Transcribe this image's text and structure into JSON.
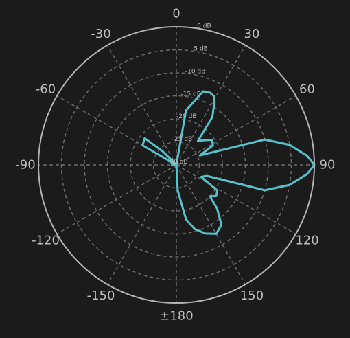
{
  "chart_data": {
    "type": "polar-line",
    "angle_unit": "degrees",
    "zero_direction": "top",
    "direction": "clockwise",
    "angle_ticks": [
      {
        "angle": 0,
        "label": "0"
      },
      {
        "angle": 30,
        "label": "30"
      },
      {
        "angle": 60,
        "label": "60"
      },
      {
        "angle": 90,
        "label": "90"
      },
      {
        "angle": 120,
        "label": "120"
      },
      {
        "angle": 150,
        "label": "150"
      },
      {
        "angle": 180,
        "label": "±180"
      },
      {
        "angle": -150,
        "label": "-150"
      },
      {
        "angle": -120,
        "label": "-120"
      },
      {
        "angle": -90,
        "label": "-90"
      },
      {
        "angle": -60,
        "label": "-60"
      },
      {
        "angle": -30,
        "label": "-30"
      }
    ],
    "radial_ticks": [
      {
        "value": 0,
        "label": "0 dB"
      },
      {
        "value": -5,
        "label": "-5 dB"
      },
      {
        "value": -10,
        "label": "-10 dB"
      },
      {
        "value": -15,
        "label": "-15 dB"
      },
      {
        "value": -20,
        "label": "-20 dB"
      },
      {
        "value": -25,
        "label": "-25 dB"
      },
      {
        "value": -30,
        "label": "-30 dB"
      }
    ],
    "radial_range": [
      -30,
      0
    ],
    "grid": true,
    "series": [
      {
        "color": "#56c3cc",
        "points": [
          {
            "angle": 0,
            "value": -30
          },
          {
            "angle": 10,
            "value": -18
          },
          {
            "angle": 20,
            "value": -13
          },
          {
            "angle": 25,
            "value": -12.7
          },
          {
            "angle": 29,
            "value": -13
          },
          {
            "angle": 32,
            "value": -14.5
          },
          {
            "angle": 37,
            "value": -17
          },
          {
            "angle": 42,
            "value": -23
          },
          {
            "angle": 48,
            "value": -22
          },
          {
            "angle": 55,
            "value": -20.5
          },
          {
            "angle": 62,
            "value": -21
          },
          {
            "angle": 68,
            "value": -24.5
          },
          {
            "angle": 74,
            "value": -10
          },
          {
            "angle": 80,
            "value": -5
          },
          {
            "angle": 86,
            "value": -1.5
          },
          {
            "angle": 90,
            "value": 0
          },
          {
            "angle": 94,
            "value": -1.5
          },
          {
            "angle": 100,
            "value": -5
          },
          {
            "angle": 106,
            "value": -10
          },
          {
            "angle": 110,
            "value": -23
          },
          {
            "angle": 116,
            "value": -24
          },
          {
            "angle": 122,
            "value": -19.5
          },
          {
            "angle": 128,
            "value": -19
          },
          {
            "angle": 133,
            "value": -20
          },
          {
            "angle": 137,
            "value": -17
          },
          {
            "angle": 143,
            "value": -13.7
          },
          {
            "angle": 150,
            "value": -12.7
          },
          {
            "angle": 157,
            "value": -13.8
          },
          {
            "angle": 164,
            "value": -15.5
          },
          {
            "angle": 170,
            "value": -18
          },
          {
            "angle": 177,
            "value": -24.5
          },
          {
            "angle": -177,
            "value": -30
          },
          {
            "angle": -100,
            "value": -30
          },
          {
            "angle": -95,
            "value": -29
          },
          {
            "angle": -90,
            "value": -30
          },
          {
            "angle": -80,
            "value": -30
          },
          {
            "angle": -60,
            "value": -21.5
          },
          {
            "angle": -50,
            "value": -21
          },
          {
            "angle": -45,
            "value": -26
          },
          {
            "angle": -30,
            "value": -30
          },
          {
            "angle": 0,
            "value": -30
          }
        ]
      }
    ]
  }
}
